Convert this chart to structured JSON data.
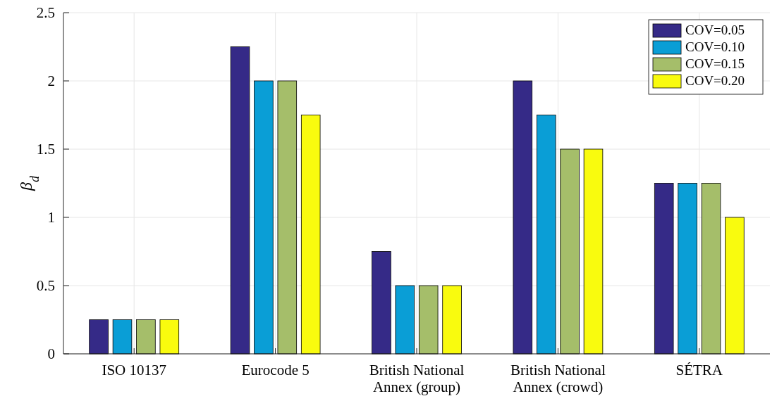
{
  "chart_data": {
    "type": "bar",
    "ylabel": "β$_{d}$",
    "categories": [
      "ISO 10137",
      "Eurocode 5",
      "British National Annex (group)",
      "British National Annex (crowd)",
      "SÉTRA"
    ],
    "series": [
      {
        "name": "COV=0.05",
        "color": "#352a87",
        "values": [
          0.25,
          2.25,
          0.75,
          2,
          1.25
        ]
      },
      {
        "name": "COV=0.10",
        "color": "#0a9ed6",
        "values": [
          0.25,
          2,
          0.5,
          1.75,
          1.25
        ]
      },
      {
        "name": "COV=0.15",
        "color": "#a5be6a",
        "values": [
          0.25,
          2,
          0.5,
          1.5,
          1.25
        ]
      },
      {
        "name": "COV=0.20",
        "color": "#f9fb0e",
        "values": [
          0.25,
          1.75,
          0.5,
          1.5,
          1
        ]
      }
    ],
    "ylim": [
      0,
      2.5
    ],
    "yticks": [
      0,
      0.5,
      1,
      1.5,
      2,
      2.5
    ],
    "grid": true,
    "legend": "top right"
  }
}
